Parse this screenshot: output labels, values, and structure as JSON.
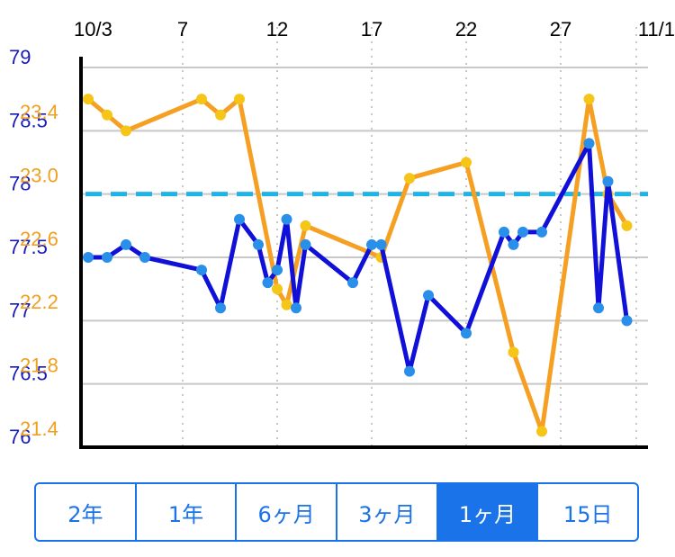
{
  "chart_data": {
    "type": "line",
    "x_ticks": [
      "10/3",
      "7",
      "12",
      "17",
      "22",
      "27",
      "11/1"
    ],
    "y_left_ticks": [
      "79",
      "78.5",
      "78",
      "77.5",
      "77",
      "76.5",
      "76"
    ],
    "y_right_ticks": [
      "23.4",
      "23.0",
      "22.6",
      "22.2",
      "21.8",
      "21.4"
    ],
    "y_left_range": [
      76,
      79
    ],
    "y_right_range": [
      21.2,
      23.6
    ],
    "x_range_days": [
      0,
      29
    ],
    "target_line": {
      "value": 78,
      "color": "#1eb4e8",
      "style": "dashed"
    },
    "series": [
      {
        "axis": "left",
        "color": "#1010d8",
        "marker_color": "#2a8fe8",
        "points": [
          {
            "x": 0,
            "y": 77.5
          },
          {
            "x": 1,
            "y": 77.5
          },
          {
            "x": 2,
            "y": 77.6
          },
          {
            "x": 3,
            "y": 77.5
          },
          {
            "x": 6,
            "y": 77.4
          },
          {
            "x": 7,
            "y": 77.1
          },
          {
            "x": 8,
            "y": 77.8
          },
          {
            "x": 9,
            "y": 77.6
          },
          {
            "x": 9.5,
            "y": 77.3
          },
          {
            "x": 10,
            "y": 77.4
          },
          {
            "x": 10.5,
            "y": 77.8
          },
          {
            "x": 11,
            "y": 77.1
          },
          {
            "x": 11.5,
            "y": 77.6
          },
          {
            "x": 14,
            "y": 77.3
          },
          {
            "x": 15,
            "y": 77.6
          },
          {
            "x": 15.5,
            "y": 77.6
          },
          {
            "x": 17,
            "y": 76.6
          },
          {
            "x": 18,
            "y": 77.2
          },
          {
            "x": 20,
            "y": 76.9
          },
          {
            "x": 22,
            "y": 77.7
          },
          {
            "x": 22.5,
            "y": 77.6
          },
          {
            "x": 23,
            "y": 77.7
          },
          {
            "x": 24,
            "y": 77.7
          },
          {
            "x": 26.5,
            "y": 78.4
          },
          {
            "x": 27,
            "y": 77.1
          },
          {
            "x": 27.5,
            "y": 78.1
          },
          {
            "x": 28.5,
            "y": 77.0
          }
        ]
      },
      {
        "axis": "right",
        "color": "#f5a023",
        "marker_color": "#f5c518",
        "points": [
          {
            "x": 0,
            "y": 23.4
          },
          {
            "x": 1,
            "y": 23.3
          },
          {
            "x": 2,
            "y": 23.2
          },
          {
            "x": 6,
            "y": 23.4
          },
          {
            "x": 7,
            "y": 23.3
          },
          {
            "x": 8,
            "y": 23.4
          },
          {
            "x": 10,
            "y": 22.2
          },
          {
            "x": 10.5,
            "y": 22.1
          },
          {
            "x": 11.5,
            "y": 22.6
          },
          {
            "x": 15.5,
            "y": 22.4
          },
          {
            "x": 17,
            "y": 22.9
          },
          {
            "x": 20,
            "y": 23.0
          },
          {
            "x": 22.5,
            "y": 21.8
          },
          {
            "x": 24,
            "y": 21.3
          },
          {
            "x": 26.5,
            "y": 23.4
          },
          {
            "x": 27.5,
            "y": 22.8
          },
          {
            "x": 28.5,
            "y": 22.6
          }
        ]
      }
    ]
  },
  "range_selector": {
    "options": [
      "2年",
      "1年",
      "6ヶ月",
      "3ヶ月",
      "1ヶ月",
      "15日"
    ],
    "selected": "1ヶ月",
    "accent_color": "#1a73e8"
  }
}
